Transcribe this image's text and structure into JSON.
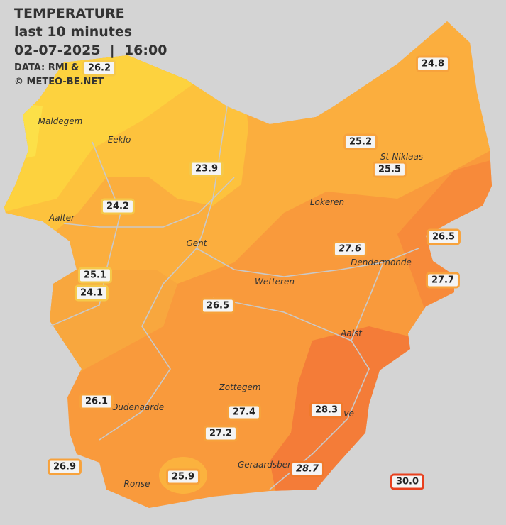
{
  "header": {
    "title": "TEMPERATURE",
    "subtitle": "last 10 minutes",
    "datetime": "02-07-2025  |  16:00",
    "source": "DATA: RMI & BMCB",
    "credit": "© METEO-BE.NET"
  },
  "cities": [
    "Maldegem",
    "Eeklo",
    "Aalter",
    "Gent",
    "Lokeren",
    "St-Niklaas",
    "Dendermonde",
    "Wetteren",
    "Aalst",
    "Zottegem",
    "Oudenaarde",
    "Ninove",
    "Geraardsbergen",
    "Ronse"
  ],
  "stations": [
    "26.2",
    "24.8",
    "25.2",
    "25.5",
    "23.9",
    "24.2",
    "26.5",
    "27.6",
    "27.7",
    "25.1",
    "24.1",
    "26.5",
    "26.1",
    "27.4",
    "28.3",
    "27.2",
    "26.9",
    "28.7",
    "25.9",
    "30.0"
  ]
}
